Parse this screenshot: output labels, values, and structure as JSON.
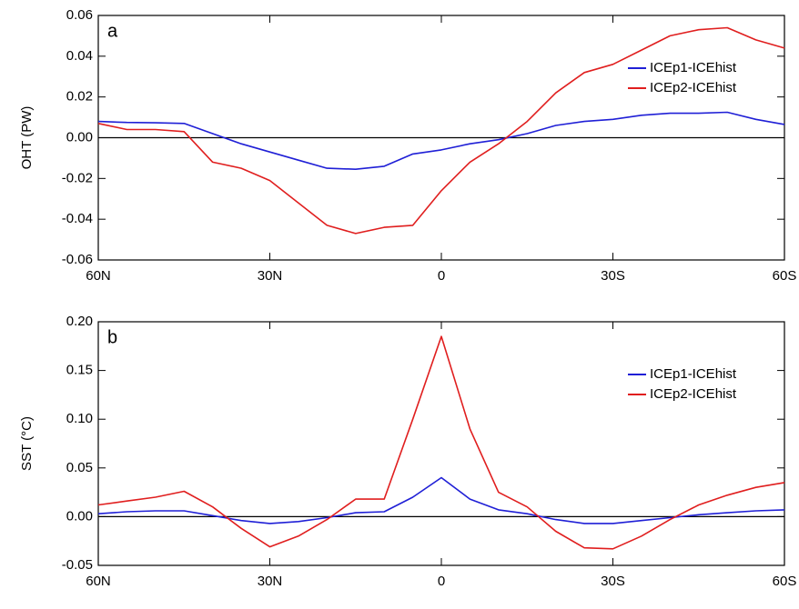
{
  "chart_data": [
    {
      "type": "line",
      "annotation": "a",
      "ylabel": "OHT (PW)",
      "x": [
        60,
        55,
        50,
        45,
        40,
        35,
        30,
        25,
        20,
        15,
        10,
        5,
        0,
        -5,
        -10,
        -15,
        -20,
        -25,
        -30,
        -35,
        -40,
        -45,
        -50,
        -55,
        -60
      ],
      "series": [
        {
          "name": "ICEp1-ICEhist",
          "color": "#1f1fd6",
          "values": [
            0.008,
            0.0075,
            0.0073,
            0.007,
            0.002,
            -0.003,
            -0.007,
            -0.011,
            -0.015,
            -0.0155,
            -0.014,
            -0.008,
            -0.006,
            -0.003,
            -0.001,
            0.002,
            0.006,
            0.008,
            0.009,
            0.011,
            0.012,
            0.012,
            0.0125,
            0.009,
            0.0065
          ]
        },
        {
          "name": "ICEp2-ICEhist",
          "color": "#e01e1e",
          "values": [
            0.007,
            0.004,
            0.004,
            0.003,
            -0.012,
            -0.015,
            -0.021,
            -0.032,
            -0.043,
            -0.047,
            -0.044,
            -0.043,
            -0.026,
            -0.012,
            -0.003,
            0.008,
            0.022,
            0.032,
            0.036,
            0.043,
            0.05,
            0.053,
            0.054,
            0.048,
            0.044
          ]
        }
      ],
      "xlim": [
        60,
        -60
      ],
      "xticks": [
        {
          "value": 60,
          "label": "60N"
        },
        {
          "value": 30,
          "label": "30N"
        },
        0,
        {
          "value": -30,
          "label": "30S"
        },
        {
          "value": -60,
          "label": "60S"
        }
      ],
      "ylim": [
        -0.06,
        0.06
      ],
      "yticks": [
        -0.06,
        -0.04,
        -0.02,
        {
          "value": 0,
          "label": "0.00"
        },
        0.02,
        0.04,
        0.06
      ],
      "legend": "right"
    },
    {
      "type": "line",
      "annotation": "b",
      "ylabel": "SST (°C)",
      "x": [
        60,
        55,
        50,
        45,
        40,
        35,
        30,
        25,
        20,
        15,
        10,
        5,
        0,
        -5,
        -10,
        -15,
        -20,
        -25,
        -30,
        -35,
        -40,
        -45,
        -50,
        -55,
        -60
      ],
      "series": [
        {
          "name": "ICEp1-ICEhist",
          "color": "#1f1fd6",
          "values": [
            0.003,
            0.005,
            0.006,
            0.006,
            0.001,
            -0.004,
            -0.007,
            -0.005,
            -0.001,
            0.004,
            0.005,
            0.02,
            0.04,
            0.018,
            0.007,
            0.003,
            -0.003,
            -0.007,
            -0.007,
            -0.004,
            -0.001,
            0.002,
            0.004,
            0.006,
            0.007
          ]
        },
        {
          "name": "ICEp2-ICEhist",
          "color": "#e01e1e",
          "values": [
            0.012,
            0.016,
            0.02,
            0.026,
            0.01,
            -0.012,
            -0.031,
            -0.02,
            -0.003,
            0.018,
            0.018,
            0.1,
            0.185,
            0.09,
            0.025,
            0.01,
            -0.015,
            -0.032,
            -0.033,
            -0.02,
            -0.003,
            0.012,
            0.022,
            0.03,
            0.035
          ]
        }
      ],
      "xlim": [
        60,
        -60
      ],
      "xticks": [
        {
          "value": 60,
          "label": "60N"
        },
        {
          "value": 30,
          "label": "30N"
        },
        0,
        {
          "value": -30,
          "label": "30S"
        },
        {
          "value": -60,
          "label": "60S"
        }
      ],
      "ylim": [
        -0.05,
        0.2
      ],
      "yticks": [
        -0.05,
        {
          "value": 0,
          "label": "0.00"
        },
        0.05,
        {
          "value": 0.1,
          "label": "0.10"
        },
        0.15,
        {
          "value": 0.2,
          "label": "0.20"
        }
      ],
      "legend": "right"
    }
  ]
}
